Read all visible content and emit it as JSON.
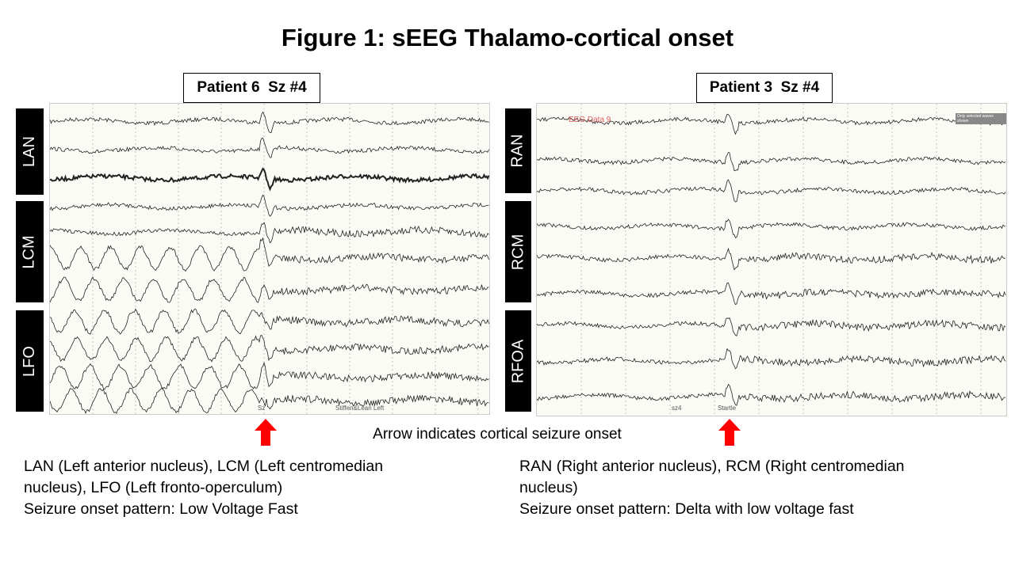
{
  "title": "Figure 1: sEEG Thalamo-cortical onset",
  "left": {
    "patient_label": "Patient 6  Sz #4",
    "channel_groups": [
      "LAN",
      "LCM",
      "LFO"
    ],
    "annotations": {
      "sz": "Sz",
      "event": "Stiffen&Lean Left"
    },
    "legend_lines": [
      "LAN (Left anterior nucleus), LCM (Left centromedian",
      "nucleus), LFO (Left fronto-operculum)",
      "Seizure onset pattern: Low Voltage Fast"
    ]
  },
  "right": {
    "patient_label": "Patient 3  Sz #4",
    "channel_groups": [
      "RAN",
      "RCM",
      "RFOA"
    ],
    "annotations": {
      "data_label": "EEG Data 9",
      "note": "Only selected waves shown",
      "sz": "sz4",
      "event": "Startle"
    },
    "legend_lines": [
      "RAN (Right anterior nucleus), RCM (Right centromedian",
      "nucleus)",
      "Seizure onset pattern: Delta with low voltage fast"
    ]
  },
  "caption": "Arrow indicates cortical seizure onset",
  "arrow_icon": "red-up-arrow",
  "colors": {
    "arrow": "#ff0000",
    "data_label": "#e06060",
    "trace": "#222222",
    "background": "#fbfbf5"
  }
}
